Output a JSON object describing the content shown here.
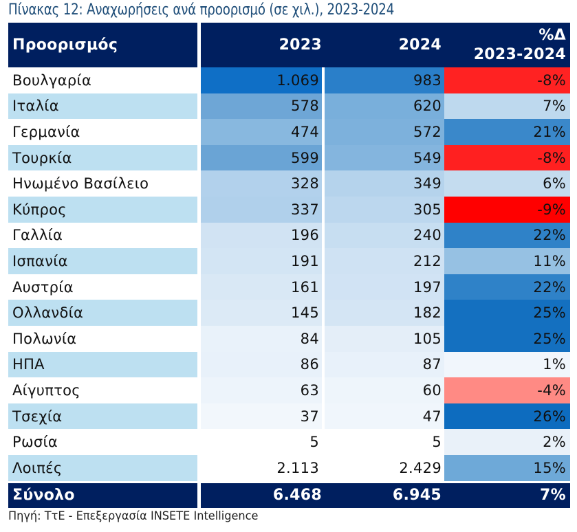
{
  "title": "Πίνακας 12: Αναχωρήσεις ανά προορισμό (σε χιλ.), 2023-2024",
  "header": {
    "destination": "Προορισμός",
    "y2023": "2023",
    "y2024": "2024",
    "change_line1": "%Δ",
    "change_line2": "2023-2024"
  },
  "rows": [
    {
      "name": "Βουλγαρία",
      "v2023": "1.069",
      "v2024": "983",
      "change": "-8%",
      "c2023": "#0f6fc6",
      "c2024": "#2a7fc9",
      "cchg": "#ff2222"
    },
    {
      "name": "Ιταλία",
      "v2023": "578",
      "v2024": "620",
      "change": "7%",
      "c2023": "#6ea6d6",
      "c2024": "#79afdb",
      "cchg": "#bed9ee"
    },
    {
      "name": "Γερμανία",
      "v2023": "474",
      "v2024": "572",
      "change": "21%",
      "c2023": "#88b8df",
      "c2024": "#7db1dc",
      "cchg": "#3a88ca"
    },
    {
      "name": "Τουρκία",
      "v2023": "599",
      "v2024": "549",
      "change": "-8%",
      "c2023": "#6aa4d5",
      "c2024": "#84b5de",
      "cchg": "#ff2020"
    },
    {
      "name": "Ηνωμένο Βασίλειο",
      "v2023": "328",
      "v2024": "349",
      "change": "6%",
      "c2023": "#b2d1ec",
      "c2024": "#b5d3ec",
      "cchg": "#c4dcef"
    },
    {
      "name": "Κύπρος",
      "v2023": "337",
      "v2024": "305",
      "change": "-9%",
      "c2023": "#b0d0eb",
      "c2024": "#bcd7ee",
      "cchg": "#ff0000"
    },
    {
      "name": "Γαλλία",
      "v2023": "196",
      "v2024": "240",
      "change": "22%",
      "c2023": "#d1e3f3",
      "c2024": "#c7def1",
      "cchg": "#2f82c8"
    },
    {
      "name": "Ισπανία",
      "v2023": "191",
      "v2024": "212",
      "change": "11%",
      "c2023": "#d3e5f4",
      "c2024": "#cfe2f3",
      "cchg": "#96c1e3"
    },
    {
      "name": "Αυστρία",
      "v2023": "161",
      "v2024": "197",
      "change": "22%",
      "c2023": "#d9e8f5",
      "c2024": "#d1e3f4",
      "cchg": "#2f82c8"
    },
    {
      "name": "Ολλανδία",
      "v2023": "145",
      "v2024": "182",
      "change": "25%",
      "c2023": "#dceaf6",
      "c2024": "#d4e5f4",
      "cchg": "#1470c0"
    },
    {
      "name": "Πολωνία",
      "v2023": "84",
      "v2024": "105",
      "change": "25%",
      "c2023": "#e9f2fa",
      "c2024": "#e4eef8",
      "cchg": "#1470c0"
    },
    {
      "name": "ΗΠΑ",
      "v2023": "86",
      "v2024": "87",
      "change": "1%",
      "c2023": "#e8f1fa",
      "c2024": "#e8f1fa",
      "cchg": "#f1f6fc"
    },
    {
      "name": "Αίγυπτος",
      "v2023": "63",
      "v2024": "60",
      "change": "-4%",
      "c2023": "#edf4fb",
      "c2024": "#eef5fb",
      "cchg": "#ff8a84"
    },
    {
      "name": "Τσεχία",
      "v2023": "37",
      "v2024": "47",
      "change": "26%",
      "c2023": "#f2f7fc",
      "c2024": "#f0f6fc",
      "cchg": "#0d6cbf"
    },
    {
      "name": "Ρωσία",
      "v2023": "5",
      "v2024": "5",
      "change": "2%",
      "c2023": "#ffffff",
      "c2024": "#ffffff",
      "cchg": "#e9f1f9"
    },
    {
      "name": "Λοιπές",
      "v2023": "2.113",
      "v2024": "2.429",
      "change": "15%",
      "c2023": "#ffffff",
      "c2024": "#ffffff",
      "cchg": "#6ea9d8"
    }
  ],
  "total": {
    "name": "Σύνολο",
    "v2023": "6.468",
    "v2024": "6.945",
    "change": "7%"
  },
  "source": "Πηγή: ΤτΕ - Επεξεργασία INSETE Intelligence"
}
